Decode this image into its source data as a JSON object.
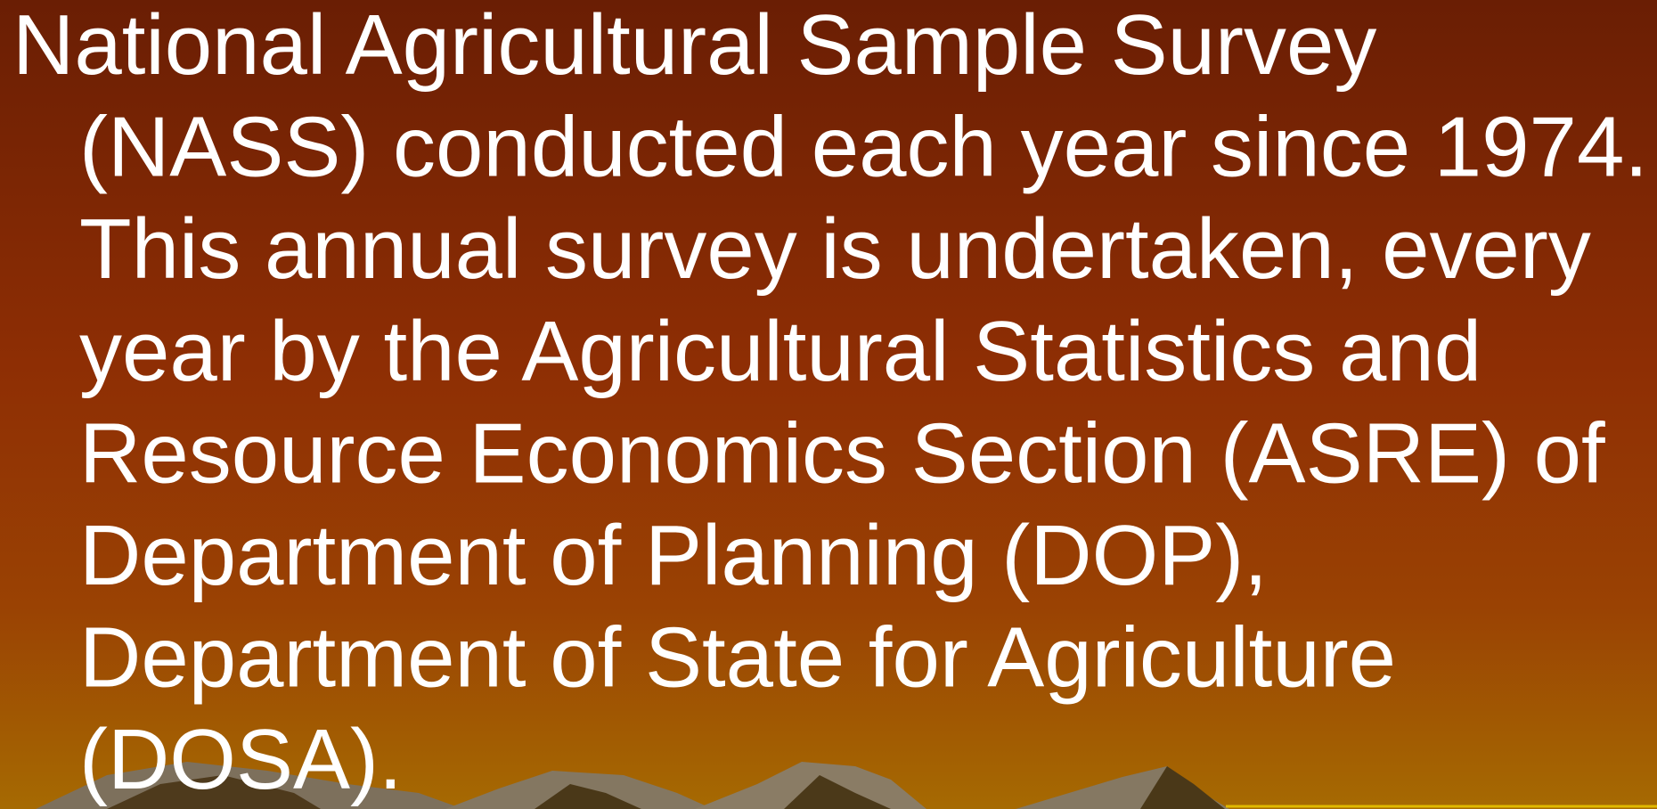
{
  "slide": {
    "lines": [
      "National Agricultural Sample Survey",
      "(NASS) conducted each year since 1974.",
      "This annual survey is undertaken, every",
      "year by the Agricultural Statistics and",
      "Resource Economics Section (ASRE) of",
      "Department of Planning (DOP),",
      "Department of State for Agriculture",
      "(DOSA)."
    ]
  }
}
